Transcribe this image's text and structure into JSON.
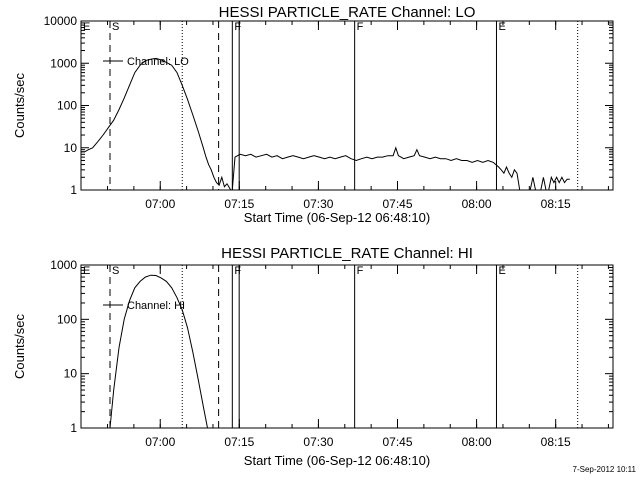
{
  "footer": {
    "timestamp": "7-Sep-2012 10:11"
  },
  "chart_data": [
    {
      "type": "line",
      "title": "HESSI PARTICLE_RATE Channel: LO",
      "xlabel": "Start Time (06-Sep-12 06:48:10)",
      "ylabel": "Counts/sec",
      "yscale": "log",
      "xlim_minutes": [
        -3.2,
        97.7
      ],
      "ylim": [
        1,
        10000
      ],
      "x_ticks": [
        {
          "label": "07:00",
          "minute": 11.83
        },
        {
          "label": "07:15",
          "minute": 26.83
        },
        {
          "label": "07:30",
          "minute": 41.83
        },
        {
          "label": "07:45",
          "minute": 56.83
        },
        {
          "label": "08:00",
          "minute": 71.83
        },
        {
          "label": "08:15",
          "minute": 86.83
        }
      ],
      "y_ticks": [
        {
          "label": "1",
          "value": 1
        },
        {
          "label": "10",
          "value": 10
        },
        {
          "label": "100",
          "value": 100
        },
        {
          "label": "1000",
          "value": 1000
        },
        {
          "label": "10000",
          "value": 10000
        }
      ],
      "legend": {
        "label": "Channel: LO",
        "position": "top-left"
      },
      "markers": [
        {
          "label": "E",
          "minute": -3.2,
          "style": "solid"
        },
        {
          "label": "S",
          "minute": 2.3,
          "style": "dashed"
        },
        {
          "label": "",
          "minute": 16.0,
          "style": "dotted"
        },
        {
          "label": "",
          "minute": 22.9,
          "style": "dashed"
        },
        {
          "label": "F",
          "minute": 25.5,
          "style": "solid"
        },
        {
          "label": "",
          "minute": 26.8,
          "style": "solid"
        },
        {
          "label": "F",
          "minute": 48.7,
          "style": "solid"
        },
        {
          "label": "E",
          "minute": 75.6,
          "style": "solid"
        },
        {
          "label": "",
          "minute": 91.0,
          "style": "dotted"
        }
      ],
      "series": [
        {
          "name": "Channel: LO",
          "x": [
            -3.2,
            -2.5,
            -1.8,
            -1.0,
            0,
            1.0,
            2.0,
            3.0,
            4.0,
            5.0,
            6.0,
            7.0,
            8.0,
            9.0,
            10.0,
            11.0,
            12.0,
            13.0,
            14.0,
            15.0,
            16.0,
            17.0,
            18.0,
            19.0,
            20.0,
            20.5,
            21.0,
            21.5,
            22.0,
            22.5,
            23.0,
            23.5,
            24.0,
            24.5,
            25.0,
            25.2,
            25.5,
            26.0,
            27.0,
            28.0,
            29.0,
            30.0,
            31.0,
            32.0,
            33.0,
            34.0,
            35.0,
            36.0,
            37.0,
            38.0,
            39.0,
            40.0,
            41.0,
            42.0,
            43.0,
            44.0,
            45.0,
            46.0,
            47.0,
            48.0,
            49.0,
            50.0,
            51.0,
            52.0,
            53.0,
            54.0,
            55.0,
            56.0,
            56.5,
            57.0,
            57.5,
            58.0,
            59.0,
            60.0,
            60.5,
            61.0,
            62.0,
            63.0,
            64.0,
            65.0,
            66.0,
            67.0,
            68.0,
            69.0,
            70.0,
            71.0,
            72.0,
            73.0,
            74.0,
            75.0,
            75.5,
            76.0,
            76.5,
            77.0,
            77.5,
            78.0,
            78.5,
            79.0,
            79.5,
            80.0,
            81.0,
            82.0,
            82.5,
            83.0,
            84.0,
            84.5,
            85.0,
            85.5,
            86.0,
            86.5,
            87.0,
            87.5,
            88.0,
            88.5,
            89.0,
            89.5
          ],
          "y": [
            8,
            8,
            9,
            10,
            14,
            20,
            30,
            45,
            80,
            150,
            300,
            600,
            900,
            1150,
            1250,
            1300,
            1200,
            1050,
            900,
            600,
            300,
            140,
            60,
            25,
            10,
            6,
            4,
            3,
            2,
            1.5,
            1.3,
            2,
            1.2,
            1.4,
            1.1,
            1,
            1,
            6,
            7,
            6.5,
            7,
            6,
            6.5,
            7,
            6,
            6.5,
            5.5,
            6,
            6.5,
            6,
            5.5,
            6,
            6.5,
            6,
            5.5,
            6,
            5.5,
            6,
            6.5,
            5.5,
            5,
            5.5,
            6,
            5.5,
            6,
            6,
            6.5,
            6.5,
            10,
            6.5,
            6,
            5.5,
            6,
            6.5,
            9,
            6.5,
            6,
            5.5,
            6,
            5.5,
            5.5,
            5,
            5.5,
            5,
            5,
            4.5,
            5,
            4.5,
            5,
            4.5,
            4,
            3.5,
            3,
            2.5,
            3.5,
            2.5,
            2,
            3,
            2.5,
            1,
            1,
            1,
            2,
            1,
            1,
            2,
            1,
            1,
            2,
            1.5,
            2,
            1.5,
            2,
            1.5,
            1.8,
            1.8
          ]
        }
      ]
    },
    {
      "type": "line",
      "title": "HESSI PARTICLE_RATE Channel: HI",
      "xlabel": "Start Time (06-Sep-12 06:48:10)",
      "ylabel": "Counts/sec",
      "yscale": "log",
      "xlim_minutes": [
        -3.2,
        97.7
      ],
      "ylim": [
        1,
        1000
      ],
      "x_ticks": [
        {
          "label": "07:00",
          "minute": 11.83
        },
        {
          "label": "07:15",
          "minute": 26.83
        },
        {
          "label": "07:30",
          "minute": 41.83
        },
        {
          "label": "07:45",
          "minute": 56.83
        },
        {
          "label": "08:00",
          "minute": 71.83
        },
        {
          "label": "08:15",
          "minute": 86.83
        }
      ],
      "y_ticks": [
        {
          "label": "1",
          "value": 1
        },
        {
          "label": "10",
          "value": 10
        },
        {
          "label": "100",
          "value": 100
        },
        {
          "label": "1000",
          "value": 1000
        }
      ],
      "legend": {
        "label": "Channel: HI",
        "position": "top-left"
      },
      "markers": [
        {
          "label": "E",
          "minute": -3.2,
          "style": "solid"
        },
        {
          "label": "S",
          "minute": 2.3,
          "style": "dashed"
        },
        {
          "label": "",
          "minute": 16.0,
          "style": "dotted"
        },
        {
          "label": "",
          "minute": 22.9,
          "style": "dashed"
        },
        {
          "label": "F",
          "minute": 25.5,
          "style": "solid"
        },
        {
          "label": "",
          "minute": 26.8,
          "style": "solid"
        },
        {
          "label": "F",
          "minute": 48.7,
          "style": "solid"
        },
        {
          "label": "E",
          "minute": 75.6,
          "style": "solid"
        },
        {
          "label": "",
          "minute": 91.0,
          "style": "dotted"
        }
      ],
      "series": [
        {
          "name": "Channel: HI",
          "x": [
            2.3,
            3.0,
            4.0,
            5.0,
            6.0,
            7.0,
            8.0,
            9.0,
            10.0,
            11.0,
            12.0,
            13.0,
            14.0,
            15.0,
            16.0,
            17.0,
            18.0,
            19.0,
            20.0,
            20.8
          ],
          "y": [
            1,
            5,
            30,
            100,
            220,
            380,
            500,
            600,
            650,
            640,
            580,
            500,
            380,
            250,
            150,
            70,
            25,
            8,
            2.5,
            1
          ]
        }
      ]
    }
  ]
}
